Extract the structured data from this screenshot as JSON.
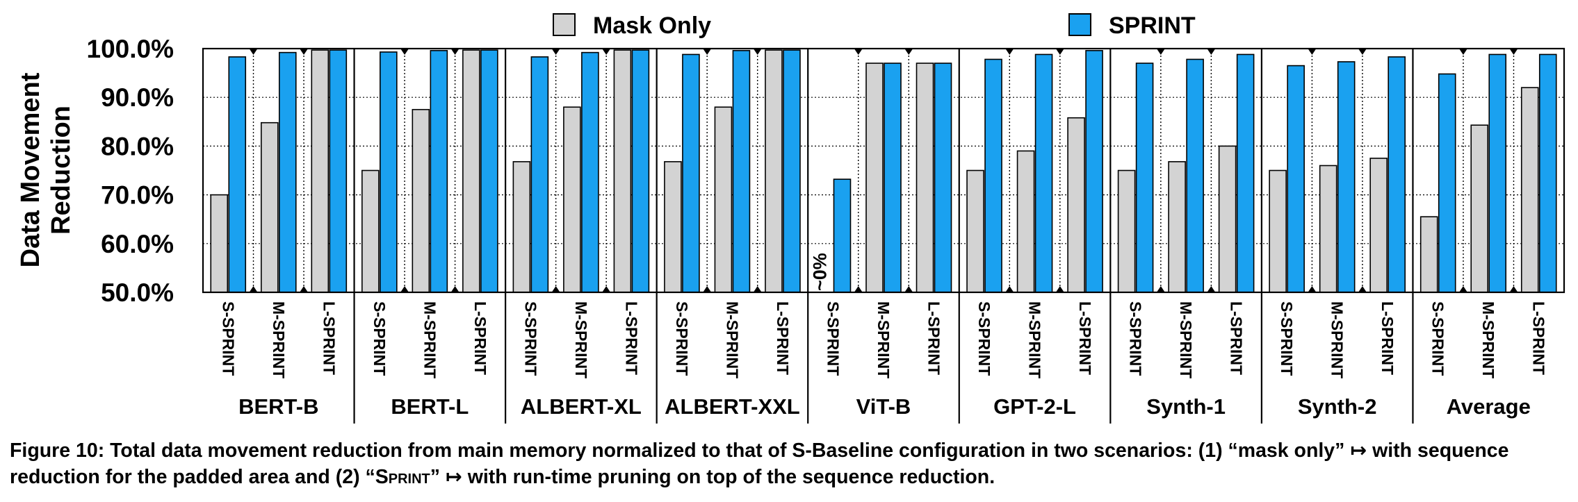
{
  "chart_data": {
    "type": "bar",
    "ylabel": "Data Movement\nReduction",
    "ylim": [
      50,
      100
    ],
    "yticks": [
      "50.0%",
      "60.0%",
      "70.0%",
      "80.0%",
      "90.0%",
      "100.0%"
    ],
    "series": [
      {
        "name": "Mask Only",
        "color": "#d3d3d3"
      },
      {
        "name": "SPRINT",
        "color": "#1aa1f0"
      }
    ],
    "configs": [
      "S-SPRINT",
      "M-SPRINT",
      "L-SPRINT"
    ],
    "groups": [
      {
        "name": "BERT-B",
        "mask_only": [
          70.0,
          84.8,
          99.7
        ],
        "sprint": [
          98.3,
          99.2,
          99.7
        ]
      },
      {
        "name": "BERT-L",
        "mask_only": [
          75.0,
          87.5,
          99.7
        ],
        "sprint": [
          99.3,
          99.6,
          99.7
        ]
      },
      {
        "name": "ALBERT-XL",
        "mask_only": [
          76.8,
          88.0,
          99.7
        ],
        "sprint": [
          98.3,
          99.2,
          99.7
        ]
      },
      {
        "name": "ALBERT-XXL",
        "mask_only": [
          76.8,
          88.0,
          99.7
        ],
        "sprint": [
          98.8,
          99.6,
          99.7
        ]
      },
      {
        "name": "ViT-B",
        "mask_only": [
          0,
          97.0,
          97.0
        ],
        "sprint": [
          73.2,
          97.0,
          97.0
        ]
      },
      {
        "name": "GPT-2-L",
        "mask_only": [
          75.0,
          79.0,
          85.8
        ],
        "sprint": [
          97.8,
          98.8,
          99.6
        ]
      },
      {
        "name": "Synth-1",
        "mask_only": [
          75.0,
          76.8,
          80.0
        ],
        "sprint": [
          97.0,
          97.8,
          98.8
        ]
      },
      {
        "name": "Synth-2",
        "mask_only": [
          75.0,
          76.0,
          77.5
        ],
        "sprint": [
          96.5,
          97.3,
          98.3
        ]
      },
      {
        "name": "Average",
        "mask_only": [
          65.5,
          84.3,
          92.0
        ],
        "sprint": [
          94.8,
          98.8,
          98.8
        ]
      }
    ],
    "annotations": [
      {
        "group": "ViT-B",
        "config": "S-SPRINT",
        "text": "~0%"
      }
    ],
    "grid": true,
    "legend_position": "top"
  },
  "caption": {
    "prefix": "Figure 10: Total data movement reduction from main memory normalized to that of S-Baseline configuration in two scenarios: (1) “mask only” ↦ with sequence reduction for the padded area and (2) “",
    "sprint_word": "Sprint",
    "suffix": "” ↦ with run-time pruning on top of the sequence reduction."
  }
}
